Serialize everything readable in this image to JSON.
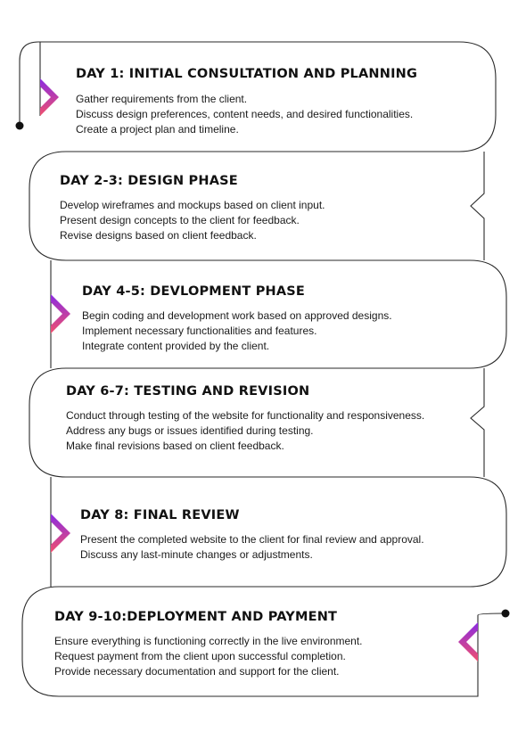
{
  "steps": [
    {
      "title": "DAY 1: INITIAL CONSULTATION AND PLANNING",
      "lines": [
        "Gather requirements from the client.",
        "Discuss design preferences, content needs, and desired functionalities.",
        "Create a project plan and timeline."
      ]
    },
    {
      "title": "DAY 2-3: DESIGN PHASE",
      "lines": [
        "Develop wireframes and mockups based on client input.",
        "Present design concepts to the client for feedback.",
        "Revise designs based on client feedback."
      ]
    },
    {
      "title": "DAY 4-5: DEVLOPMENT PHASE",
      "lines": [
        "Begin coding and development work based on approved designs.",
        "Implement necessary functionalities and features.",
        "Integrate content provided by the client."
      ]
    },
    {
      "title": "DAY 6-7: TESTING AND REVISION",
      "lines": [
        "Conduct through testing of the website for functionality and responsiveness.",
        "Address any bugs or issues identified during testing.",
        "Make final revisions based on client feedback."
      ]
    },
    {
      "title": "DAY 8: FINAL REVIEW",
      "lines": [
        "Present the completed website to the client for final review and approval.",
        "Discuss any last-minute changes or adjustments."
      ]
    },
    {
      "title": "DAY 9-10:DEPLOYMENT AND PAYMENT",
      "lines": [
        "Ensure everything is functioning correctly in the live environment.",
        "Request payment from the client upon successful completion.",
        "Provide necessary documentation and support for the client."
      ]
    }
  ],
  "colors": {
    "line": "#2a2a2a",
    "gradient_top": "#8a2be2",
    "gradient_bottom": "#f0506e"
  },
  "icons": {
    "step_marker": "chevron-arrow-icon",
    "endpoint": "dot-icon"
  }
}
